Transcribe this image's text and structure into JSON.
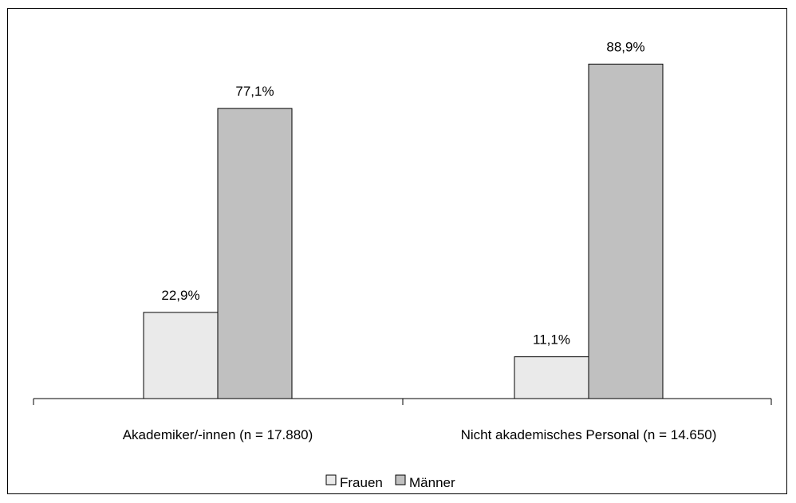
{
  "chart_data": {
    "type": "bar",
    "categories": [
      "Akademiker/-innen (n = 17.880)",
      "Nicht akademisches Personal (n = 14.650)"
    ],
    "series": [
      {
        "name": "Frauen",
        "values": [
          22.9,
          11.1
        ],
        "labels": [
          "22,9%",
          "11,1%"
        ],
        "color": "#eaeaea"
      },
      {
        "name": "Männer",
        "values": [
          77.1,
          88.9
        ],
        "labels": [
          "77,1%",
          "88,9%"
        ],
        "color": "#c0c0c0"
      }
    ],
    "ylim": [
      0,
      100
    ],
    "unit": "%",
    "grid": false,
    "legend_position": "bottom"
  }
}
